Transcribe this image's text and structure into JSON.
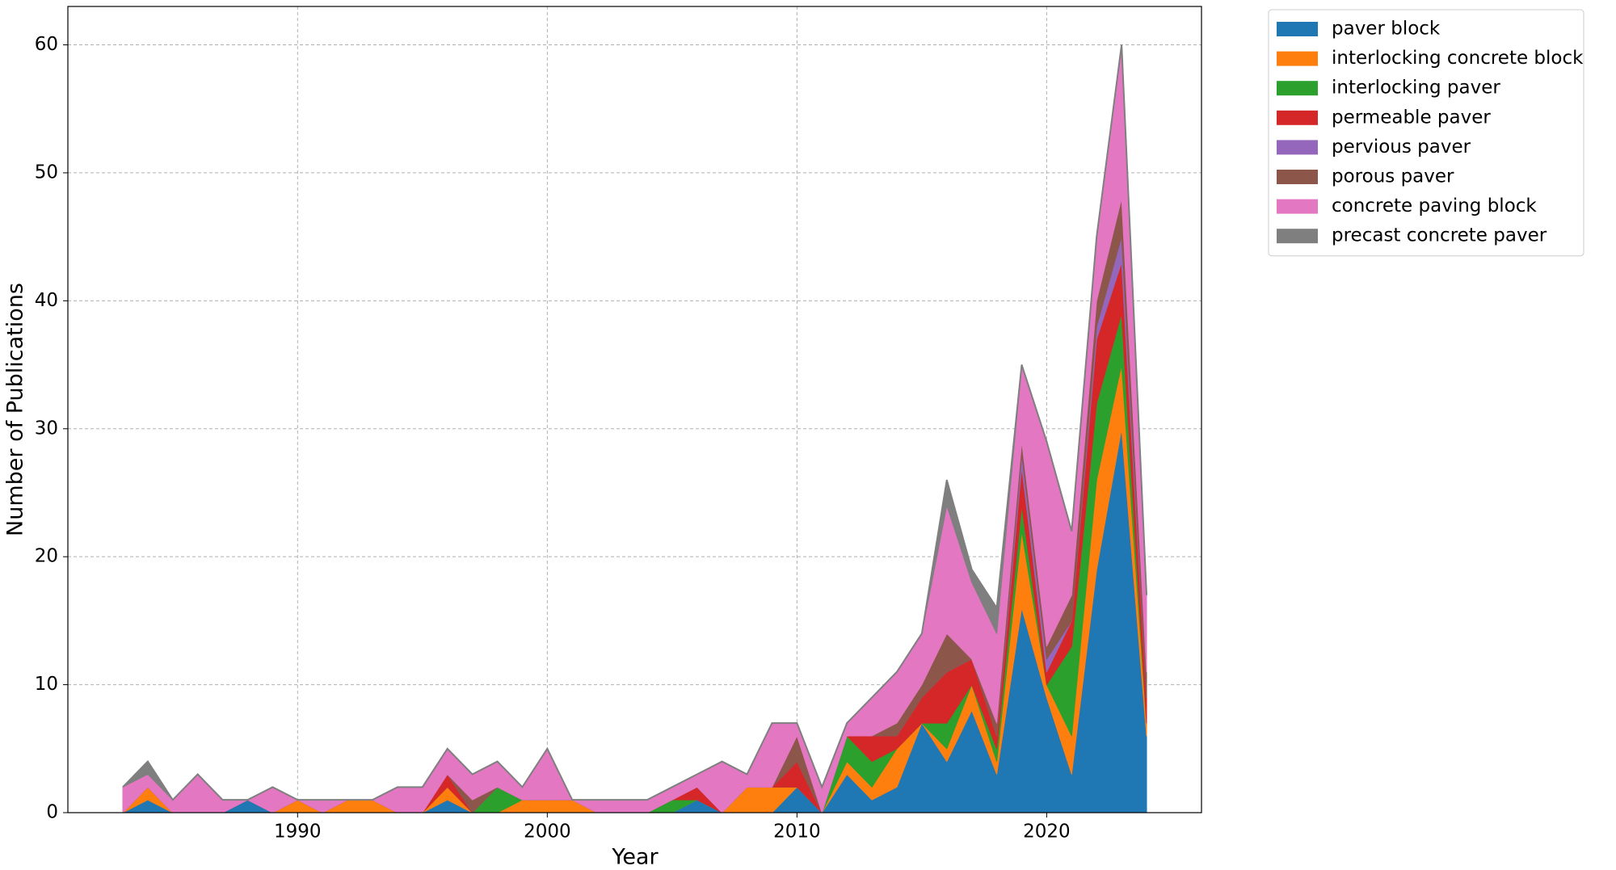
{
  "chart_data": {
    "type": "stacked-area",
    "x_label": "Year",
    "y_label": "Number of Publications",
    "x": [
      1983,
      1984,
      1985,
      1986,
      1987,
      1988,
      1989,
      1990,
      1991,
      1992,
      1993,
      1994,
      1995,
      1996,
      1997,
      1998,
      1999,
      2000,
      2001,
      2002,
      2003,
      2004,
      2005,
      2006,
      2007,
      2008,
      2009,
      2010,
      2011,
      2012,
      2013,
      2014,
      2015,
      2016,
      2017,
      2018,
      2019,
      2020,
      2021,
      2022,
      2023,
      2024
    ],
    "series": [
      {
        "name": "paver block",
        "color": "#1f77b4",
        "values": [
          0,
          1,
          0,
          0,
          0,
          1,
          0,
          0,
          0,
          0,
          0,
          0,
          0,
          1,
          0,
          0,
          0,
          0,
          0,
          0,
          0,
          0,
          0,
          1,
          0,
          0,
          0,
          2,
          0,
          3,
          1,
          2,
          7,
          4,
          8,
          3,
          16,
          9,
          3,
          19,
          30,
          6
        ]
      },
      {
        "name": "interlocking concrete block",
        "color": "#ff7f0e",
        "values": [
          0,
          1,
          0,
          0,
          0,
          0,
          0,
          1,
          0,
          1,
          1,
          0,
          0,
          1,
          0,
          0,
          1,
          1,
          1,
          0,
          0,
          0,
          0,
          0,
          0,
          2,
          2,
          0,
          0,
          1,
          1,
          3,
          0,
          1,
          2,
          1,
          6,
          1,
          3,
          7,
          5,
          1
        ]
      },
      {
        "name": "interlocking paver",
        "color": "#2ca02c",
        "values": [
          0,
          0,
          0,
          0,
          0,
          0,
          0,
          0,
          0,
          0,
          0,
          0,
          0,
          0,
          0,
          2,
          0,
          0,
          0,
          0,
          0,
          0,
          1,
          0,
          0,
          0,
          0,
          0,
          0,
          2,
          2,
          0,
          0,
          2,
          0,
          1,
          2,
          0,
          7,
          6,
          4,
          0
        ]
      },
      {
        "name": "permeable paver",
        "color": "#d62728",
        "values": [
          0,
          0,
          0,
          0,
          0,
          0,
          0,
          0,
          0,
          0,
          0,
          0,
          0,
          1,
          0,
          0,
          0,
          0,
          0,
          0,
          0,
          0,
          0,
          1,
          0,
          0,
          0,
          2,
          0,
          0,
          2,
          1,
          2,
          4,
          2,
          1,
          3,
          1,
          2,
          5,
          4,
          2
        ]
      },
      {
        "name": "pervious paver",
        "color": "#9467bd",
        "values": [
          0,
          0,
          0,
          0,
          0,
          0,
          0,
          0,
          0,
          0,
          0,
          0,
          0,
          0,
          0,
          0,
          0,
          0,
          0,
          0,
          0,
          0,
          0,
          0,
          0,
          0,
          0,
          0,
          0,
          0,
          0,
          0,
          0,
          0,
          0,
          0,
          1,
          1,
          0,
          1,
          2,
          0
        ]
      },
      {
        "name": "porous paver",
        "color": "#8c564b",
        "values": [
          0,
          0,
          0,
          0,
          0,
          0,
          0,
          0,
          0,
          0,
          0,
          0,
          0,
          0,
          1,
          0,
          0,
          0,
          0,
          0,
          0,
          0,
          0,
          0,
          0,
          0,
          0,
          2,
          0,
          0,
          0,
          1,
          1,
          3,
          0,
          1,
          1,
          1,
          2,
          2,
          3,
          2
        ]
      },
      {
        "name": "concrete paving block",
        "color": "#e377c2",
        "values": [
          2,
          1,
          1,
          3,
          1,
          0,
          2,
          0,
          1,
          0,
          0,
          2,
          2,
          2,
          2,
          2,
          1,
          4,
          0,
          1,
          1,
          1,
          1,
          1,
          4,
          1,
          5,
          1,
          2,
          1,
          3,
          4,
          4,
          10,
          6,
          7,
          6,
          16,
          5,
          5,
          12,
          6
        ]
      },
      {
        "name": "precast concrete paver",
        "color": "#7f7f7f",
        "values": [
          0,
          1,
          0,
          0,
          0,
          0,
          0,
          0,
          0,
          0,
          0,
          0,
          0,
          0,
          0,
          0,
          0,
          0,
          0,
          0,
          0,
          0,
          0,
          0,
          0,
          0,
          0,
          0,
          0,
          0,
          0,
          0,
          0,
          2,
          1,
          2,
          0,
          0,
          0,
          0,
          0,
          0
        ]
      }
    ],
    "xlim": [
      1980.8,
      2026.2
    ],
    "xticks": [
      1990,
      2000,
      2010,
      2020
    ],
    "ylim": [
      0,
      63
    ],
    "yticks": [
      0,
      10,
      20,
      30,
      40,
      50,
      60
    ],
    "grid": true,
    "legend": "outside-upper-right"
  }
}
